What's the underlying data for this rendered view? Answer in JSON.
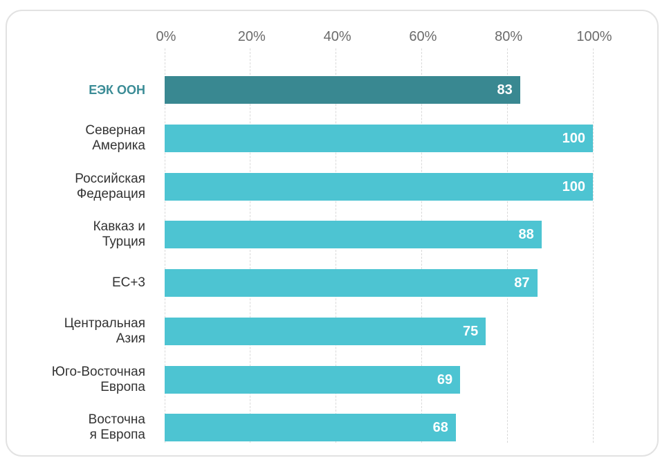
{
  "chart_data": {
    "type": "bar",
    "orientation": "horizontal",
    "categories": [
      "ЕЭК ООН",
      "Северная\nАмерика",
      "Российская\nФедерация",
      "Кавказ и\nТурция",
      "ЕС+3",
      "Центральная\nАзия",
      "Юго-Восточная\nЕвропа",
      "Восточна\nя Европа"
    ],
    "values": [
      83,
      100,
      100,
      88,
      87,
      75,
      69,
      68
    ],
    "x_ticks": [
      0,
      20,
      40,
      60,
      80,
      100
    ],
    "x_tick_labels": [
      "0%",
      "20%",
      "40%",
      "60%",
      "80%",
      "100%"
    ],
    "xlim": [
      0,
      100
    ],
    "x_axis_position": "top",
    "grid": true,
    "highlight_index": 0,
    "colors": {
      "highlight_bar": "#398891",
      "bar": "#4dc4d2",
      "highlight_label": "#3b8c96",
      "label": "#333333",
      "value_label": "#ffffff",
      "tick_label": "#6b6b6b",
      "grid": "#d9d9d9"
    }
  }
}
